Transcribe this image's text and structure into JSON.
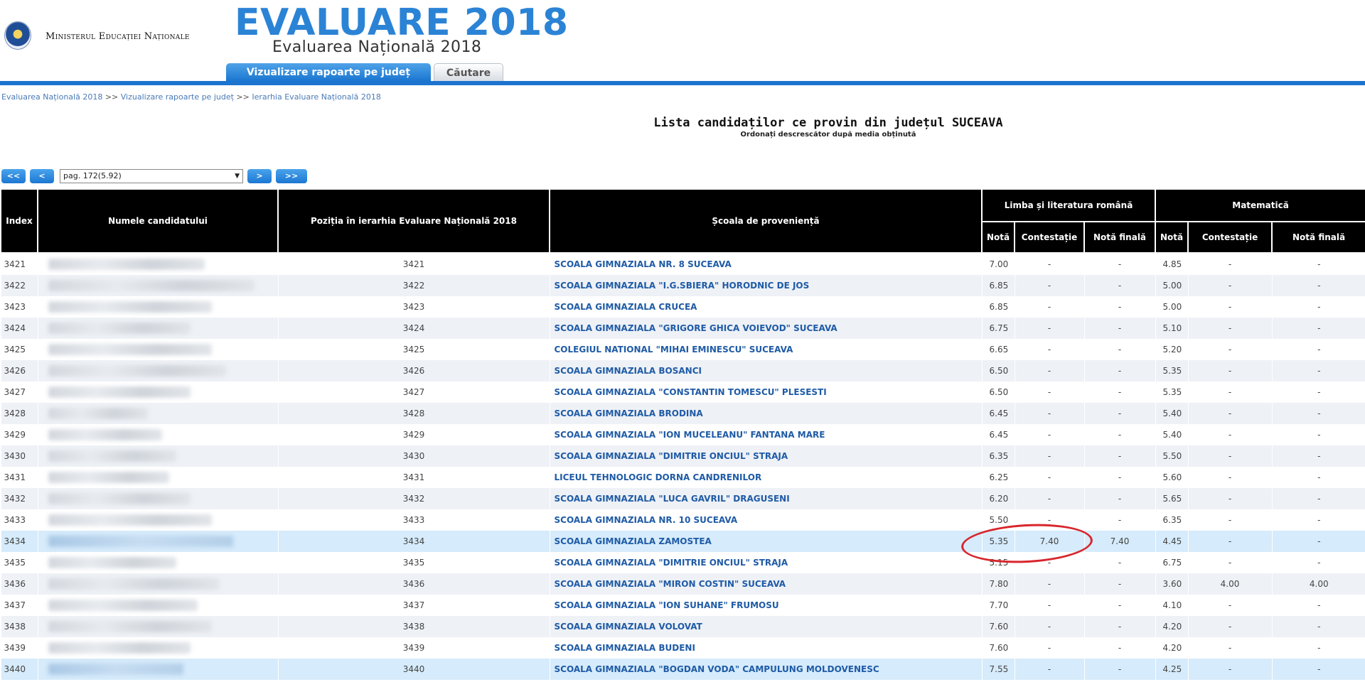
{
  "header": {
    "ministry": "Ministerul Educației Naționale",
    "title": "EVALUARE 2018",
    "subtitle": "Evaluarea Națională 2018",
    "tabs": [
      {
        "label": "Vizualizare rapoarte pe județ",
        "active": true
      },
      {
        "label": "Căutare",
        "active": false
      }
    ]
  },
  "breadcrumb": {
    "items": [
      "Evaluarea Națională 2018",
      "Vizualizare rapoarte pe județ",
      "Ierarhia Evaluare Națională 2018"
    ],
    "separator": ">>"
  },
  "page": {
    "heading": "Lista candidaților ce provin din județul SUCEAVA",
    "subheading": "Ordonați descrescător după media obținută"
  },
  "pager": {
    "first": "<<",
    "prev": "<",
    "next": ">",
    "last": ">>",
    "selected": "pag. 172(5.92)"
  },
  "table": {
    "headers": {
      "index": "Index",
      "name": "Numele candidatului",
      "position": "Poziția în ierarhia Evaluare Națională 2018",
      "school": "Școala de proveniență",
      "romanian": "Limba și literatura română",
      "math": "Matematică",
      "grade": "Notă",
      "appeal": "Contestație",
      "final": "Notă finală"
    },
    "rows": [
      {
        "index": "3421",
        "pos": "3421",
        "school": "SCOALA GIMNAZIALA NR. 8 SUCEAVA",
        "ro": "7.00",
        "ro_c": "-",
        "ro_f": "-",
        "ma": "4.85",
        "ma_c": "-",
        "ma_f": "-"
      },
      {
        "index": "3422",
        "pos": "3422",
        "school": "SCOALA GIMNAZIALA \"I.G.SBIERA\" HORODNIC DE JOS",
        "ro": "6.85",
        "ro_c": "-",
        "ro_f": "-",
        "ma": "5.00",
        "ma_c": "-",
        "ma_f": "-"
      },
      {
        "index": "3423",
        "pos": "3423",
        "school": "SCOALA GIMNAZIALA CRUCEA",
        "ro": "6.85",
        "ro_c": "-",
        "ro_f": "-",
        "ma": "5.00",
        "ma_c": "-",
        "ma_f": "-"
      },
      {
        "index": "3424",
        "pos": "3424",
        "school": "SCOALA GIMNAZIALA \"GRIGORE GHICA VOIEVOD\" SUCEAVA",
        "ro": "6.75",
        "ro_c": "-",
        "ro_f": "-",
        "ma": "5.10",
        "ma_c": "-",
        "ma_f": "-"
      },
      {
        "index": "3425",
        "pos": "3425",
        "school": "COLEGIUL NATIONAL \"MIHAI EMINESCU\" SUCEAVA",
        "ro": "6.65",
        "ro_c": "-",
        "ro_f": "-",
        "ma": "5.20",
        "ma_c": "-",
        "ma_f": "-"
      },
      {
        "index": "3426",
        "pos": "3426",
        "school": "SCOALA GIMNAZIALA BOSANCI",
        "ro": "6.50",
        "ro_c": "-",
        "ro_f": "-",
        "ma": "5.35",
        "ma_c": "-",
        "ma_f": "-"
      },
      {
        "index": "3427",
        "pos": "3427",
        "school": "SCOALA GIMNAZIALA \"CONSTANTIN TOMESCU\" PLESESTI",
        "ro": "6.50",
        "ro_c": "-",
        "ro_f": "-",
        "ma": "5.35",
        "ma_c": "-",
        "ma_f": "-"
      },
      {
        "index": "3428",
        "pos": "3428",
        "school": "SCOALA GIMNAZIALA BRODINA",
        "ro": "6.45",
        "ro_c": "-",
        "ro_f": "-",
        "ma": "5.40",
        "ma_c": "-",
        "ma_f": "-"
      },
      {
        "index": "3429",
        "pos": "3429",
        "school": "SCOALA GIMNAZIALA \"ION MUCELEANU\" FANTANA MARE",
        "ro": "6.45",
        "ro_c": "-",
        "ro_f": "-",
        "ma": "5.40",
        "ma_c": "-",
        "ma_f": "-"
      },
      {
        "index": "3430",
        "pos": "3430",
        "school": "SCOALA GIMNAZIALA \"DIMITRIE ONCIUL\" STRAJA",
        "ro": "6.35",
        "ro_c": "-",
        "ro_f": "-",
        "ma": "5.50",
        "ma_c": "-",
        "ma_f": "-"
      },
      {
        "index": "3431",
        "pos": "3431",
        "school": "LICEUL TEHNOLOGIC DORNA CANDRENILOR",
        "ro": "6.25",
        "ro_c": "-",
        "ro_f": "-",
        "ma": "5.60",
        "ma_c": "-",
        "ma_f": "-"
      },
      {
        "index": "3432",
        "pos": "3432",
        "school": "SCOALA GIMNAZIALA \"LUCA GAVRIL\" DRAGUSENI",
        "ro": "6.20",
        "ro_c": "-",
        "ro_f": "-",
        "ma": "5.65",
        "ma_c": "-",
        "ma_f": "-"
      },
      {
        "index": "3433",
        "pos": "3433",
        "school": "SCOALA GIMNAZIALA NR. 10 SUCEAVA",
        "ro": "5.50",
        "ro_c": "-",
        "ro_f": "-",
        "ma": "6.35",
        "ma_c": "-",
        "ma_f": "-"
      },
      {
        "index": "3434",
        "pos": "3434",
        "school": "SCOALA GIMNAZIALA ZAMOSTEA",
        "ro": "5.35",
        "ro_c": "7.40",
        "ro_f": "7.40",
        "ma": "4.45",
        "ma_c": "-",
        "ma_f": "-",
        "highlight": true
      },
      {
        "index": "3435",
        "pos": "3435",
        "school": "SCOALA GIMNAZIALA \"DIMITRIE ONCIUL\" STRAJA",
        "ro": "5.15",
        "ro_c": "-",
        "ro_f": "-",
        "ma": "6.75",
        "ma_c": "-",
        "ma_f": "-"
      },
      {
        "index": "3436",
        "pos": "3436",
        "school": "SCOALA GIMNAZIALA \"MIRON COSTIN\" SUCEAVA",
        "ro": "7.80",
        "ro_c": "-",
        "ro_f": "-",
        "ma": "3.60",
        "ma_c": "4.00",
        "ma_f": "4.00"
      },
      {
        "index": "3437",
        "pos": "3437",
        "school": "SCOALA GIMNAZIALA \"ION SUHANE\" FRUMOSU",
        "ro": "7.70",
        "ro_c": "-",
        "ro_f": "-",
        "ma": "4.10",
        "ma_c": "-",
        "ma_f": "-"
      },
      {
        "index": "3438",
        "pos": "3438",
        "school": "SCOALA GIMNAZIALA VOLOVAT",
        "ro": "7.60",
        "ro_c": "-",
        "ro_f": "-",
        "ma": "4.20",
        "ma_c": "-",
        "ma_f": "-"
      },
      {
        "index": "3439",
        "pos": "3439",
        "school": "SCOALA GIMNAZIALA BUDENI",
        "ro": "7.60",
        "ro_c": "-",
        "ro_f": "-",
        "ma": "4.20",
        "ma_c": "-",
        "ma_f": "-"
      },
      {
        "index": "3440",
        "pos": "3440",
        "school": "SCOALA GIMNAZIALA \"BOGDAN VODA\" CAMPULUNG MOLDOVENESC",
        "ro": "7.55",
        "ro_c": "-",
        "ro_f": "-",
        "ma": "4.25",
        "ma_c": "-",
        "ma_f": "-",
        "highlight": true
      }
    ]
  },
  "colors": {
    "accent": "#1c74cf",
    "title": "#2b83d5",
    "link": "#1f5ba6",
    "highlight_row": "#d6ebfb",
    "annotation": "#d8262c"
  }
}
